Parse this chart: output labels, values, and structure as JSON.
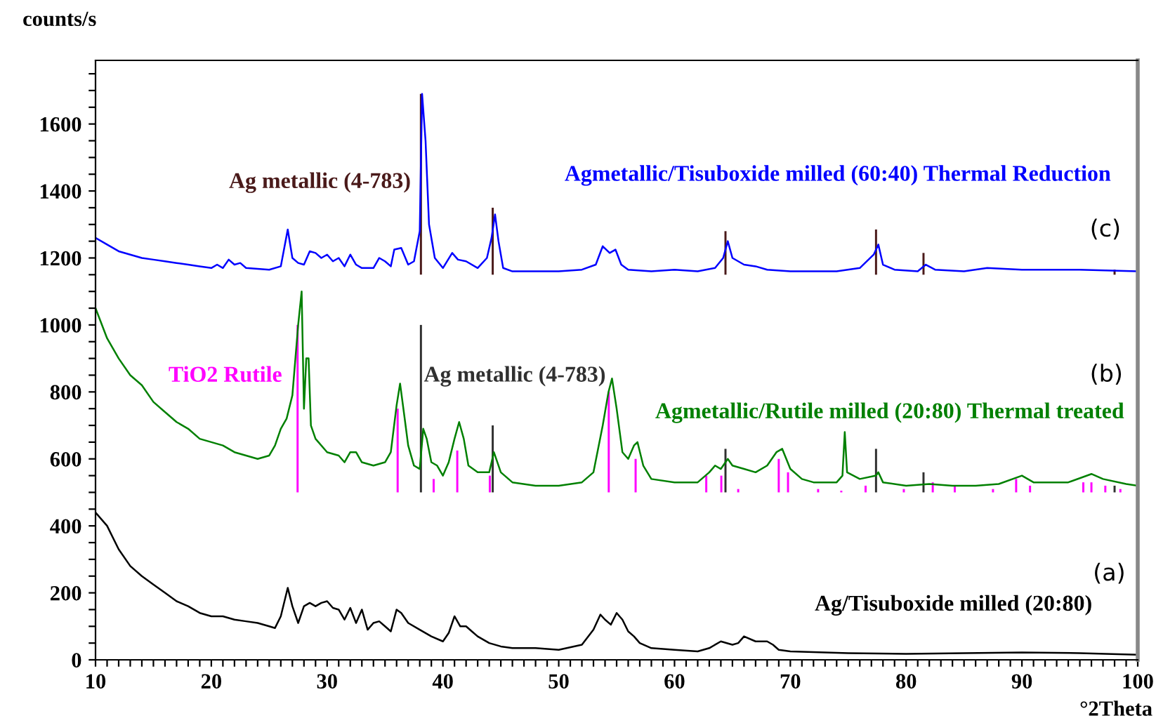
{
  "chart_data": {
    "type": "line",
    "xlabel": "°2Theta",
    "ylabel": "counts/s",
    "xlim": [
      10,
      100
    ],
    "ylim": [
      0,
      1790
    ],
    "xticks": [
      10,
      {
        "value": 11,
        "label": null
      },
      {
        "value": 12,
        "label": null
      },
      {
        "value": 13,
        "label": null
      },
      {
        "value": 14,
        "label": null
      },
      {
        "value": 15,
        "label": null
      },
      {
        "value": 16,
        "label": null
      },
      {
        "value": 17,
        "label": null
      },
      {
        "value": 18,
        "label": null
      },
      {
        "value": 19,
        "label": null
      },
      20,
      {
        "value": 21,
        "label": null
      },
      {
        "value": 22,
        "label": null
      },
      {
        "value": 23,
        "label": null
      },
      {
        "value": 24,
        "label": null
      },
      {
        "value": 25,
        "label": null
      },
      {
        "value": 26,
        "label": null
      },
      {
        "value": 27,
        "label": null
      },
      {
        "value": 28,
        "label": null
      },
      {
        "value": 29,
        "label": null
      },
      30,
      {
        "value": 31,
        "label": null
      },
      {
        "value": 32,
        "label": null
      },
      {
        "value": 33,
        "label": null
      },
      {
        "value": 34,
        "label": null
      },
      {
        "value": 35,
        "label": null
      },
      {
        "value": 36,
        "label": null
      },
      {
        "value": 37,
        "label": null
      },
      {
        "value": 38,
        "label": null
      },
      {
        "value": 39,
        "label": null
      },
      40,
      {
        "value": 41,
        "label": null
      },
      {
        "value": 42,
        "label": null
      },
      {
        "value": 43,
        "label": null
      },
      {
        "value": 44,
        "label": null
      },
      {
        "value": 45,
        "label": null
      },
      {
        "value": 46,
        "label": null
      },
      {
        "value": 47,
        "label": null
      },
      {
        "value": 48,
        "label": null
      },
      {
        "value": 49,
        "label": null
      },
      50,
      {
        "value": 51,
        "label": null
      },
      {
        "value": 52,
        "label": null
      },
      {
        "value": 53,
        "label": null
      },
      {
        "value": 54,
        "label": null
      },
      {
        "value": 55,
        "label": null
      },
      {
        "value": 56,
        "label": null
      },
      {
        "value": 57,
        "label": null
      },
      {
        "value": 58,
        "label": null
      },
      {
        "value": 59,
        "label": null
      },
      60,
      {
        "value": 61,
        "label": null
      },
      {
        "value": 62,
        "label": null
      },
      {
        "value": 63,
        "label": null
      },
      {
        "value": 64,
        "label": null
      },
      {
        "value": 65,
        "label": null
      },
      {
        "value": 66,
        "label": null
      },
      {
        "value": 67,
        "label": null
      },
      {
        "value": 68,
        "label": null
      },
      {
        "value": 69,
        "label": null
      },
      70,
      {
        "value": 71,
        "label": null
      },
      {
        "value": 72,
        "label": null
      },
      {
        "value": 73,
        "label": null
      },
      {
        "value": 74,
        "label": null
      },
      {
        "value": 75,
        "label": null
      },
      {
        "value": 76,
        "label": null
      },
      {
        "value": 77,
        "label": null
      },
      {
        "value": 78,
        "label": null
      },
      {
        "value": 79,
        "label": null
      },
      80,
      {
        "value": 81,
        "label": null
      },
      {
        "value": 82,
        "label": null
      },
      {
        "value": 83,
        "label": null
      },
      {
        "value": 84,
        "label": null
      },
      {
        "value": 85,
        "label": null
      },
      {
        "value": 86,
        "label": null
      },
      {
        "value": 87,
        "label": null
      },
      {
        "value": 88,
        "label": null
      },
      {
        "value": 89,
        "label": null
      },
      90,
      {
        "value": 91,
        "label": null
      },
      {
        "value": 92,
        "label": null
      },
      {
        "value": 93,
        "label": null
      },
      {
        "value": 94,
        "label": null
      },
      {
        "value": 95,
        "label": null
      },
      {
        "value": 96,
        "label": null
      },
      {
        "value": 97,
        "label": null
      },
      {
        "value": 98,
        "label": null
      },
      {
        "value": 99,
        "label": null
      },
      100
    ],
    "yticks": [
      0,
      {
        "value": 50,
        "label": null
      },
      {
        "value": 100,
        "label": null
      },
      {
        "value": 150,
        "label": null
      },
      200,
      {
        "value": 250,
        "label": null
      },
      {
        "value": 300,
        "label": null
      },
      {
        "value": 350,
        "label": null
      },
      400,
      {
        "value": 450,
        "label": null
      },
      {
        "value": 500,
        "label": null
      },
      {
        "value": 550,
        "label": null
      },
      600,
      {
        "value": 650,
        "label": null
      },
      {
        "value": 700,
        "label": null
      },
      {
        "value": 750,
        "label": null
      },
      800,
      {
        "value": 850,
        "label": null
      },
      {
        "value": 900,
        "label": null
      },
      {
        "value": 950,
        "label": null
      },
      1000,
      {
        "value": 1050,
        "label": null
      },
      {
        "value": 1100,
        "label": null
      },
      {
        "value": 1150,
        "label": null
      },
      1200,
      {
        "value": 1250,
        "label": null
      },
      {
        "value": 1300,
        "label": null
      },
      {
        "value": 1350,
        "label": null
      },
      1400,
      {
        "value": 1450,
        "label": null
      },
      {
        "value": 1500,
        "label": null
      },
      {
        "value": 1550,
        "label": null
      },
      1600,
      {
        "value": 1650,
        "label": null
      },
      {
        "value": 1700,
        "label": null
      },
      {
        "value": 1750,
        "label": null
      }
    ],
    "grid": false,
    "legend": false,
    "marker": "none",
    "line_style": "solid",
    "series": [
      {
        "name": "Ag/Tisuboxide milled (20:80)",
        "color": "#000000",
        "x": [
          10,
          11,
          12,
          13,
          14,
          15,
          16,
          17,
          18,
          19,
          20,
          21,
          22,
          23,
          24,
          25,
          25.5,
          26,
          26.6,
          27,
          27.5,
          28,
          28.5,
          29,
          29.5,
          30,
          30.5,
          31,
          31.5,
          32,
          32.5,
          33,
          33.5,
          34,
          34.5,
          35,
          35.5,
          36,
          36.4,
          37,
          38,
          39,
          40,
          40.5,
          41,
          41.5,
          42,
          42.5,
          43,
          44,
          45,
          46,
          48,
          50,
          52,
          53,
          53.6,
          54,
          54.5,
          55,
          55.5,
          56,
          56.5,
          57,
          58,
          60,
          62,
          63,
          64,
          65,
          65.5,
          66,
          67,
          68,
          68.5,
          69,
          70,
          75,
          80,
          85,
          90,
          95,
          100
        ],
        "values": [
          440,
          400,
          330,
          280,
          250,
          225,
          200,
          175,
          160,
          140,
          130,
          130,
          120,
          115,
          110,
          100,
          95,
          130,
          215,
          160,
          110,
          160,
          170,
          160,
          170,
          175,
          155,
          150,
          120,
          155,
          110,
          150,
          90,
          110,
          115,
          100,
          85,
          150,
          140,
          110,
          90,
          70,
          55,
          80,
          130,
          100,
          100,
          85,
          70,
          50,
          40,
          35,
          35,
          30,
          45,
          90,
          135,
          120,
          105,
          140,
          120,
          85,
          70,
          50,
          35,
          30,
          25,
          35,
          55,
          45,
          50,
          70,
          55,
          55,
          45,
          30,
          25,
          20,
          18,
          20,
          22,
          20,
          15
        ]
      },
      {
        "name": "Agmetallic/Rutile milled (20:80) Thermal treated",
        "color": "#008000",
        "x": [
          10,
          11,
          12,
          13,
          14,
          15,
          16,
          17,
          18,
          19,
          20,
          21,
          22,
          23,
          24,
          25,
          25.5,
          26,
          26.5,
          27,
          27.5,
          27.8,
          28,
          28.2,
          28.4,
          28.6,
          29,
          30,
          31,
          31.5,
          32,
          32.5,
          33,
          34,
          35,
          35.5,
          36,
          36.3,
          36.7,
          37,
          37.5,
          38,
          38.3,
          38.6,
          39,
          39.5,
          40,
          40.5,
          41,
          41.4,
          41.8,
          42.2,
          43,
          44,
          44.4,
          45,
          46,
          48,
          50,
          52,
          53,
          53.8,
          54.3,
          54.6,
          55,
          55.5,
          56,
          56.5,
          56.8,
          57.3,
          58,
          60,
          62,
          63,
          63.5,
          64,
          64.6,
          65,
          66,
          67,
          68,
          68.8,
          69.3,
          70,
          71,
          72,
          74,
          74.5,
          74.7,
          74.9,
          76,
          77.4,
          77.6,
          78,
          80,
          82,
          84,
          86,
          88,
          90,
          91,
          94,
          96,
          97,
          99,
          100
        ],
        "values": [
          1050,
          960,
          900,
          850,
          820,
          770,
          740,
          710,
          690,
          660,
          650,
          640,
          620,
          610,
          600,
          610,
          640,
          690,
          720,
          790,
          1000,
          1100,
          750,
          900,
          900,
          700,
          660,
          620,
          610,
          590,
          620,
          620,
          590,
          580,
          590,
          620,
          760,
          825,
          720,
          640,
          580,
          570,
          690,
          660,
          590,
          580,
          550,
          590,
          660,
          710,
          660,
          580,
          560,
          560,
          620,
          560,
          530,
          520,
          520,
          530,
          560,
          700,
          800,
          840,
          750,
          620,
          600,
          640,
          650,
          580,
          540,
          530,
          530,
          560,
          580,
          570,
          600,
          580,
          570,
          560,
          580,
          620,
          630,
          570,
          540,
          530,
          530,
          550,
          680,
          560,
          540,
          550,
          560,
          530,
          520,
          525,
          520,
          520,
          525,
          550,
          530,
          530,
          555,
          540,
          525,
          520
        ]
      },
      {
        "name": "Agmetallic/Tisuboxide milled (60:40) Thermal Reduction",
        "color": "#0000ff",
        "x": [
          10,
          11,
          12,
          13,
          14,
          15,
          16,
          17,
          18,
          19,
          20,
          20.5,
          21,
          21.5,
          22,
          22.5,
          23,
          25,
          26,
          26.6,
          27,
          27.5,
          28,
          28.5,
          29,
          29.5,
          30,
          30.5,
          31,
          31.5,
          32,
          32.5,
          33,
          34,
          34.5,
          35,
          35.5,
          35.8,
          36.4,
          37,
          37.5,
          38,
          38.2,
          38.5,
          38.8,
          39.3,
          40,
          40.8,
          41.3,
          42,
          43,
          43.8,
          44.2,
          44.5,
          44.8,
          45.2,
          46,
          50,
          52,
          53.2,
          53.8,
          54.4,
          54.9,
          55.4,
          56,
          58,
          60,
          62,
          63.5,
          64.2,
          64.6,
          65,
          66,
          67,
          68,
          70,
          72,
          74,
          76,
          77.2,
          77.6,
          78,
          79,
          81,
          81.7,
          82.5,
          85,
          87,
          90,
          95,
          100
        ],
        "values": [
          1260,
          1240,
          1220,
          1210,
          1200,
          1195,
          1190,
          1185,
          1180,
          1175,
          1170,
          1180,
          1170,
          1195,
          1180,
          1185,
          1170,
          1165,
          1175,
          1285,
          1200,
          1185,
          1180,
          1220,
          1215,
          1200,
          1210,
          1190,
          1200,
          1175,
          1210,
          1180,
          1170,
          1170,
          1200,
          1190,
          1175,
          1225,
          1230,
          1180,
          1190,
          1280,
          1690,
          1550,
          1300,
          1200,
          1170,
          1215,
          1195,
          1190,
          1170,
          1200,
          1260,
          1330,
          1250,
          1170,
          1160,
          1160,
          1165,
          1180,
          1235,
          1215,
          1225,
          1180,
          1165,
          1160,
          1165,
          1160,
          1170,
          1200,
          1250,
          1200,
          1180,
          1175,
          1165,
          1160,
          1160,
          1160,
          1170,
          1210,
          1240,
          1180,
          1165,
          1160,
          1180,
          1165,
          1160,
          1170,
          1165,
          1165,
          1160
        ]
      },
      {
        "type": "bar",
        "name": "Ag metallic (4-783)",
        "color": "#4a1a1a",
        "x": [
          38.1,
          44.3,
          64.4,
          77.4,
          81.5,
          98
        ],
        "base": [
          1150,
          1150,
          1150,
          1150,
          1150,
          1150
        ],
        "values": [
          540,
          200,
          130,
          135,
          65,
          15
        ]
      },
      {
        "type": "bar",
        "name": "Ag metallic (4-783)",
        "color": "#303030",
        "x": [
          38.1,
          44.3,
          64.4,
          77.4,
          81.5,
          98
        ],
        "base": [
          500,
          500,
          500,
          500,
          500,
          500
        ],
        "values": [
          500,
          200,
          130,
          130,
          60,
          20
        ]
      },
      {
        "type": "bar",
        "name": "TiO2 Rutile",
        "color": "#ff00ff",
        "x": [
          27.45,
          36.09,
          39.2,
          41.24,
          44.05,
          54.32,
          56.64,
          62.74,
          64.04,
          65.5,
          69.0,
          69.8,
          72.4,
          74.4,
          76.5,
          79.8,
          82.3,
          84.2,
          87.5,
          89.5,
          90.7,
          95.3,
          96.0,
          97.2,
          98.5
        ],
        "base": [
          500,
          500,
          500,
          500,
          500,
          500,
          500,
          500,
          500,
          500,
          500,
          500,
          500,
          500,
          500,
          500,
          500,
          500,
          500,
          500,
          500,
          500,
          500,
          500,
          500
        ],
        "values": [
          500,
          250,
          40,
          125,
          50,
          300,
          100,
          50,
          50,
          10,
          100,
          60,
          10,
          5,
          20,
          10,
          30,
          20,
          10,
          40,
          20,
          30,
          30,
          20,
          10
        ]
      }
    ],
    "annotations": [
      "(c)",
      "(b)",
      "(a)"
    ]
  }
}
